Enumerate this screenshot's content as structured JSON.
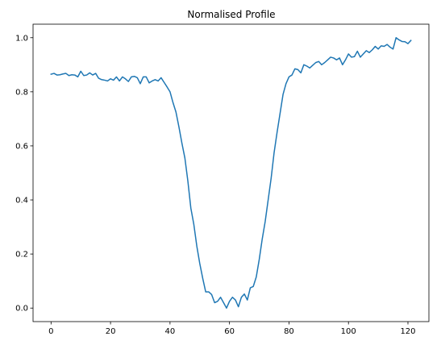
{
  "chart_data": {
    "type": "line",
    "title": "Normalised Profile",
    "xlabel": "",
    "ylabel": "",
    "xlim": [
      -6.05,
      127.05
    ],
    "ylim": [
      -0.05,
      1.05
    ],
    "xticks": [
      0,
      20,
      40,
      60,
      80,
      100,
      120
    ],
    "yticks": [
      0.0,
      0.2,
      0.4,
      0.6,
      0.8,
      1.0
    ],
    "xtick_labels": [
      "0",
      "20",
      "40",
      "60",
      "80",
      "100",
      "120"
    ],
    "ytick_labels": [
      "0.0",
      "0.2",
      "0.4",
      "0.6",
      "0.8",
      "1.0"
    ],
    "grid": false,
    "series": [
      {
        "color": "#1f77b4",
        "x": [
          0,
          1,
          2,
          3,
          4,
          5,
          6,
          7,
          8,
          9,
          10,
          11,
          12,
          13,
          14,
          15,
          16,
          17,
          18,
          19,
          20,
          21,
          22,
          23,
          24,
          25,
          26,
          27,
          28,
          29,
          30,
          31,
          32,
          33,
          34,
          35,
          36,
          37,
          38,
          39,
          40,
          41,
          42,
          43,
          44,
          45,
          46,
          47,
          48,
          49,
          50,
          51,
          52,
          53,
          54,
          55,
          56,
          57,
          58,
          59,
          60,
          61,
          62,
          63,
          64,
          65,
          66,
          67,
          68,
          69,
          70,
          71,
          72,
          73,
          74,
          75,
          76,
          77,
          78,
          79,
          80,
          81,
          82,
          83,
          84,
          85,
          86,
          87,
          88,
          89,
          90,
          91,
          92,
          93,
          94,
          95,
          96,
          97,
          98,
          99,
          100,
          101,
          102,
          103,
          104,
          105,
          106,
          107,
          108,
          109,
          110,
          111,
          112,
          113,
          114,
          115,
          116,
          117,
          118,
          119,
          120,
          121
        ],
        "values": [
          0.865,
          0.868,
          0.862,
          0.863,
          0.866,
          0.868,
          0.86,
          0.863,
          0.862,
          0.855,
          0.876,
          0.86,
          0.862,
          0.87,
          0.862,
          0.868,
          0.85,
          0.845,
          0.843,
          0.84,
          0.848,
          0.843,
          0.855,
          0.84,
          0.855,
          0.848,
          0.838,
          0.855,
          0.857,
          0.852,
          0.83,
          0.855,
          0.855,
          0.833,
          0.84,
          0.845,
          0.84,
          0.852,
          0.835,
          0.818,
          0.8,
          0.76,
          0.725,
          0.67,
          0.61,
          0.555,
          0.47,
          0.37,
          0.31,
          0.23,
          0.165,
          0.11,
          0.06,
          0.06,
          0.05,
          0.02,
          0.025,
          0.04,
          0.02,
          0.0,
          0.025,
          0.04,
          0.03,
          0.005,
          0.04,
          0.052,
          0.03,
          0.075,
          0.08,
          0.115,
          0.18,
          0.255,
          0.32,
          0.4,
          0.48,
          0.575,
          0.65,
          0.72,
          0.79,
          0.83,
          0.855,
          0.862,
          0.885,
          0.882,
          0.87,
          0.9,
          0.895,
          0.888,
          0.898,
          0.908,
          0.912,
          0.9,
          0.908,
          0.918,
          0.928,
          0.925,
          0.918,
          0.925,
          0.9,
          0.918,
          0.94,
          0.928,
          0.93,
          0.95,
          0.928,
          0.94,
          0.952,
          0.945,
          0.955,
          0.968,
          0.958,
          0.97,
          0.968,
          0.975,
          0.965,
          0.958,
          1.0,
          0.992,
          0.986,
          0.985,
          0.978,
          0.99
        ]
      }
    ]
  }
}
